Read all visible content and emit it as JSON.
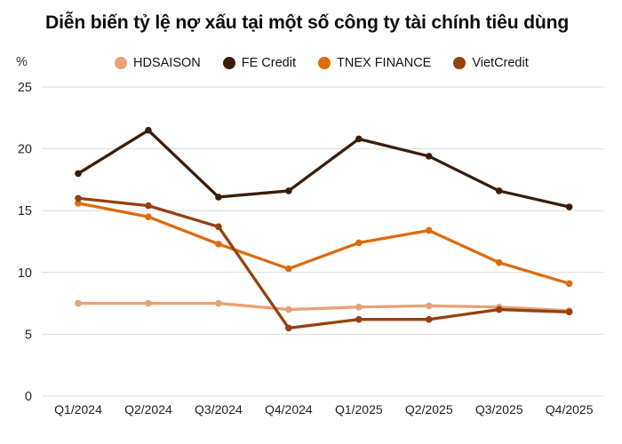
{
  "chart_data": {
    "type": "line",
    "title": "Diễn biến tỷ lệ nợ xấu tại một số công ty tài chính tiêu dùng",
    "ylabel": "%",
    "xlabel": "",
    "categories": [
      "Q1/2024",
      "Q2/2024",
      "Q3/2024",
      "Q4/2024",
      "Q1/2025",
      "Q2/2025",
      "Q3/2025",
      "Q4/2025"
    ],
    "series": [
      {
        "name": "HDSAISON",
        "color": "#E9A176",
        "values": [
          7.5,
          7.5,
          7.5,
          7.0,
          7.2,
          7.3,
          7.2,
          6.9
        ]
      },
      {
        "name": "FE Credit",
        "color": "#3B1D07",
        "values": [
          18.0,
          21.5,
          16.1,
          16.6,
          20.8,
          19.4,
          16.6,
          15.3
        ]
      },
      {
        "name": "TNEX FINANCE",
        "color": "#DE6B0C",
        "values": [
          15.6,
          14.5,
          12.3,
          10.3,
          12.4,
          13.4,
          10.8,
          9.1
        ]
      },
      {
        "name": "VietCredit",
        "color": "#96400F",
        "values": [
          16.0,
          15.4,
          13.7,
          5.5,
          6.2,
          6.2,
          7.0,
          6.8
        ]
      }
    ],
    "ylim": [
      0,
      25
    ],
    "yticks": [
      0,
      5,
      10,
      15,
      20,
      25
    ],
    "grid": "horizontal",
    "legend_position": "top"
  }
}
